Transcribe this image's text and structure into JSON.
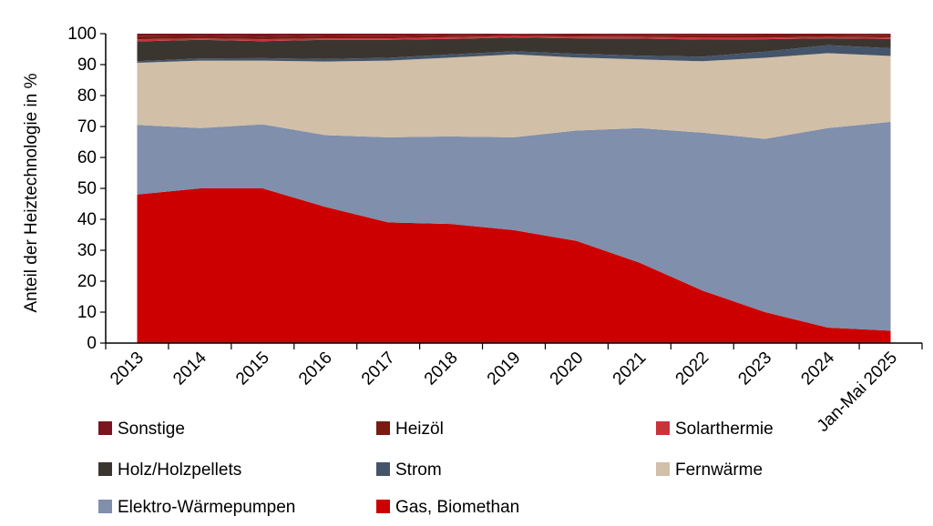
{
  "chart_data": {
    "type": "area",
    "stacked": true,
    "percent": true,
    "ylabel": "Anteil der Heiztechnologie in %",
    "xlabel": "",
    "ylim": [
      0,
      100
    ],
    "yticks": [
      0,
      10,
      20,
      30,
      40,
      50,
      60,
      70,
      80,
      90,
      100
    ],
    "categories": [
      "2013",
      "2014",
      "2015",
      "2016",
      "2017",
      "2018",
      "2019",
      "2020",
      "2021",
      "2022",
      "2023",
      "2024",
      "Jan-Mai 2025"
    ],
    "series": [
      {
        "name": "Gas, Biomethan",
        "color": "#cc0000",
        "values": [
          48,
          50,
          50,
          44,
          39,
          38.5,
          36.5,
          33,
          26,
          17,
          10,
          5,
          4
        ]
      },
      {
        "name": "Elektro-Wärmepumpen",
        "color": "#7f8fac",
        "values": [
          22.5,
          19.5,
          20.7,
          23.2,
          27.5,
          28.3,
          30,
          35.7,
          43.5,
          51,
          56,
          64.5,
          67.5
        ]
      },
      {
        "name": "Fernwärme",
        "color": "#d1bfa7",
        "values": [
          20.1,
          21.8,
          20.6,
          23.8,
          24.8,
          25.5,
          26.8,
          23.6,
          22.2,
          23.1,
          26.2,
          24.2,
          21.3
        ]
      },
      {
        "name": "Strom",
        "color": "#44546a",
        "values": [
          0.5,
          0.7,
          0.8,
          0.8,
          0.9,
          1.0,
          1.0,
          1.2,
          1.2,
          1.5,
          2.0,
          2.6,
          2.5
        ]
      },
      {
        "name": "Holz/Holzpellets",
        "color": "#3b3530",
        "values": [
          6.4,
          6.0,
          5.5,
          6.2,
          5.8,
          5.0,
          4.5,
          5.0,
          5.5,
          5.5,
          4.0,
          2.2,
          3.0
        ]
      },
      {
        "name": "Solarthermie",
        "color": "#c7343a",
        "values": [
          0.7,
          0.5,
          0.6,
          0.5,
          0.5,
          0.6,
          0.5,
          0.6,
          0.6,
          0.6,
          0.5,
          0.5,
          0.5
        ]
      },
      {
        "name": "Heizöl",
        "color": "#7b1a10",
        "values": [
          1.0,
          0.8,
          0.9,
          0.9,
          0.8,
          0.7,
          0.5,
          0.6,
          0.6,
          0.9,
          1.0,
          0.7,
          0.8
        ]
      },
      {
        "name": "Sonstige",
        "color": "#7a1520",
        "values": [
          0.8,
          0.7,
          0.9,
          0.6,
          0.7,
          0.4,
          0.2,
          0.3,
          0.4,
          0.4,
          0.3,
          0.3,
          0.4
        ]
      }
    ],
    "legend": {
      "placement": "bottom",
      "order": [
        "Sonstige",
        "Heizöl",
        "Solarthermie",
        "Holz/Holzpellets",
        "Strom",
        "Fernwärme",
        "Elektro-Wärmepumpen",
        "Gas, Biomethan"
      ]
    }
  }
}
